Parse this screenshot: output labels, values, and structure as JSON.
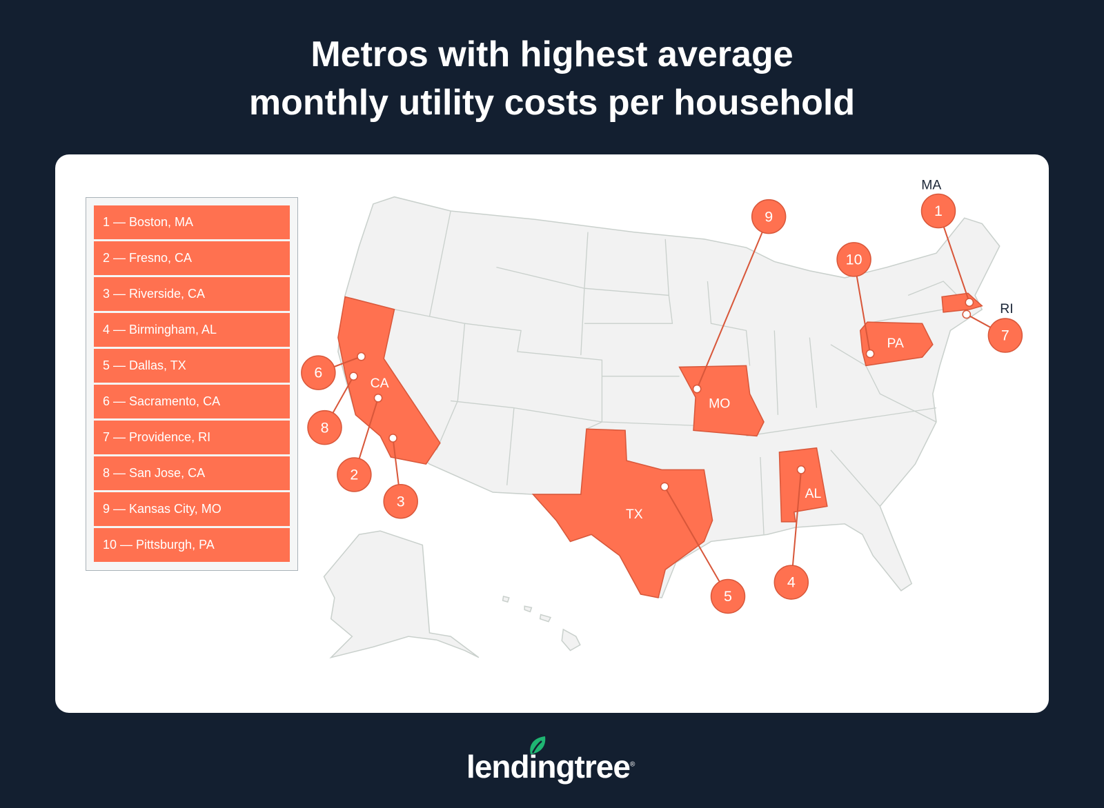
{
  "title": [
    "Metros with highest average",
    "monthly utility costs per household"
  ],
  "legend": [
    {
      "rank": "1",
      "label": "1 — Boston, MA"
    },
    {
      "rank": "2",
      "label": "2 — Fresno, CA"
    },
    {
      "rank": "3",
      "label": "3 — Riverside, CA"
    },
    {
      "rank": "4",
      "label": "4 — Birmingham, AL"
    },
    {
      "rank": "5",
      "label": "5 — Dallas, TX"
    },
    {
      "rank": "6",
      "label": "6 — Sacramento, CA"
    },
    {
      "rank": "7",
      "label": "7 — Providence, RI"
    },
    {
      "rank": "8",
      "label": "8 — San Jose, CA"
    },
    {
      "rank": "9",
      "label": "9 — Kansas City, MO"
    },
    {
      "rank": "10",
      "label": "10 — Pittsburgh, PA"
    }
  ],
  "state_labels": [
    "CA",
    "TX",
    "MO",
    "AL",
    "PA",
    "MA",
    "RI"
  ],
  "highlighted_states": [
    "CA",
    "TX",
    "MO",
    "AL",
    "PA",
    "MA"
  ],
  "colors": {
    "background": "#131f30",
    "highlight": "#ff7150",
    "base_state": "#f2f2f2",
    "logo_leaf": "#1fb572"
  },
  "logo": {
    "text": "lendingtree",
    "mark": "®"
  }
}
